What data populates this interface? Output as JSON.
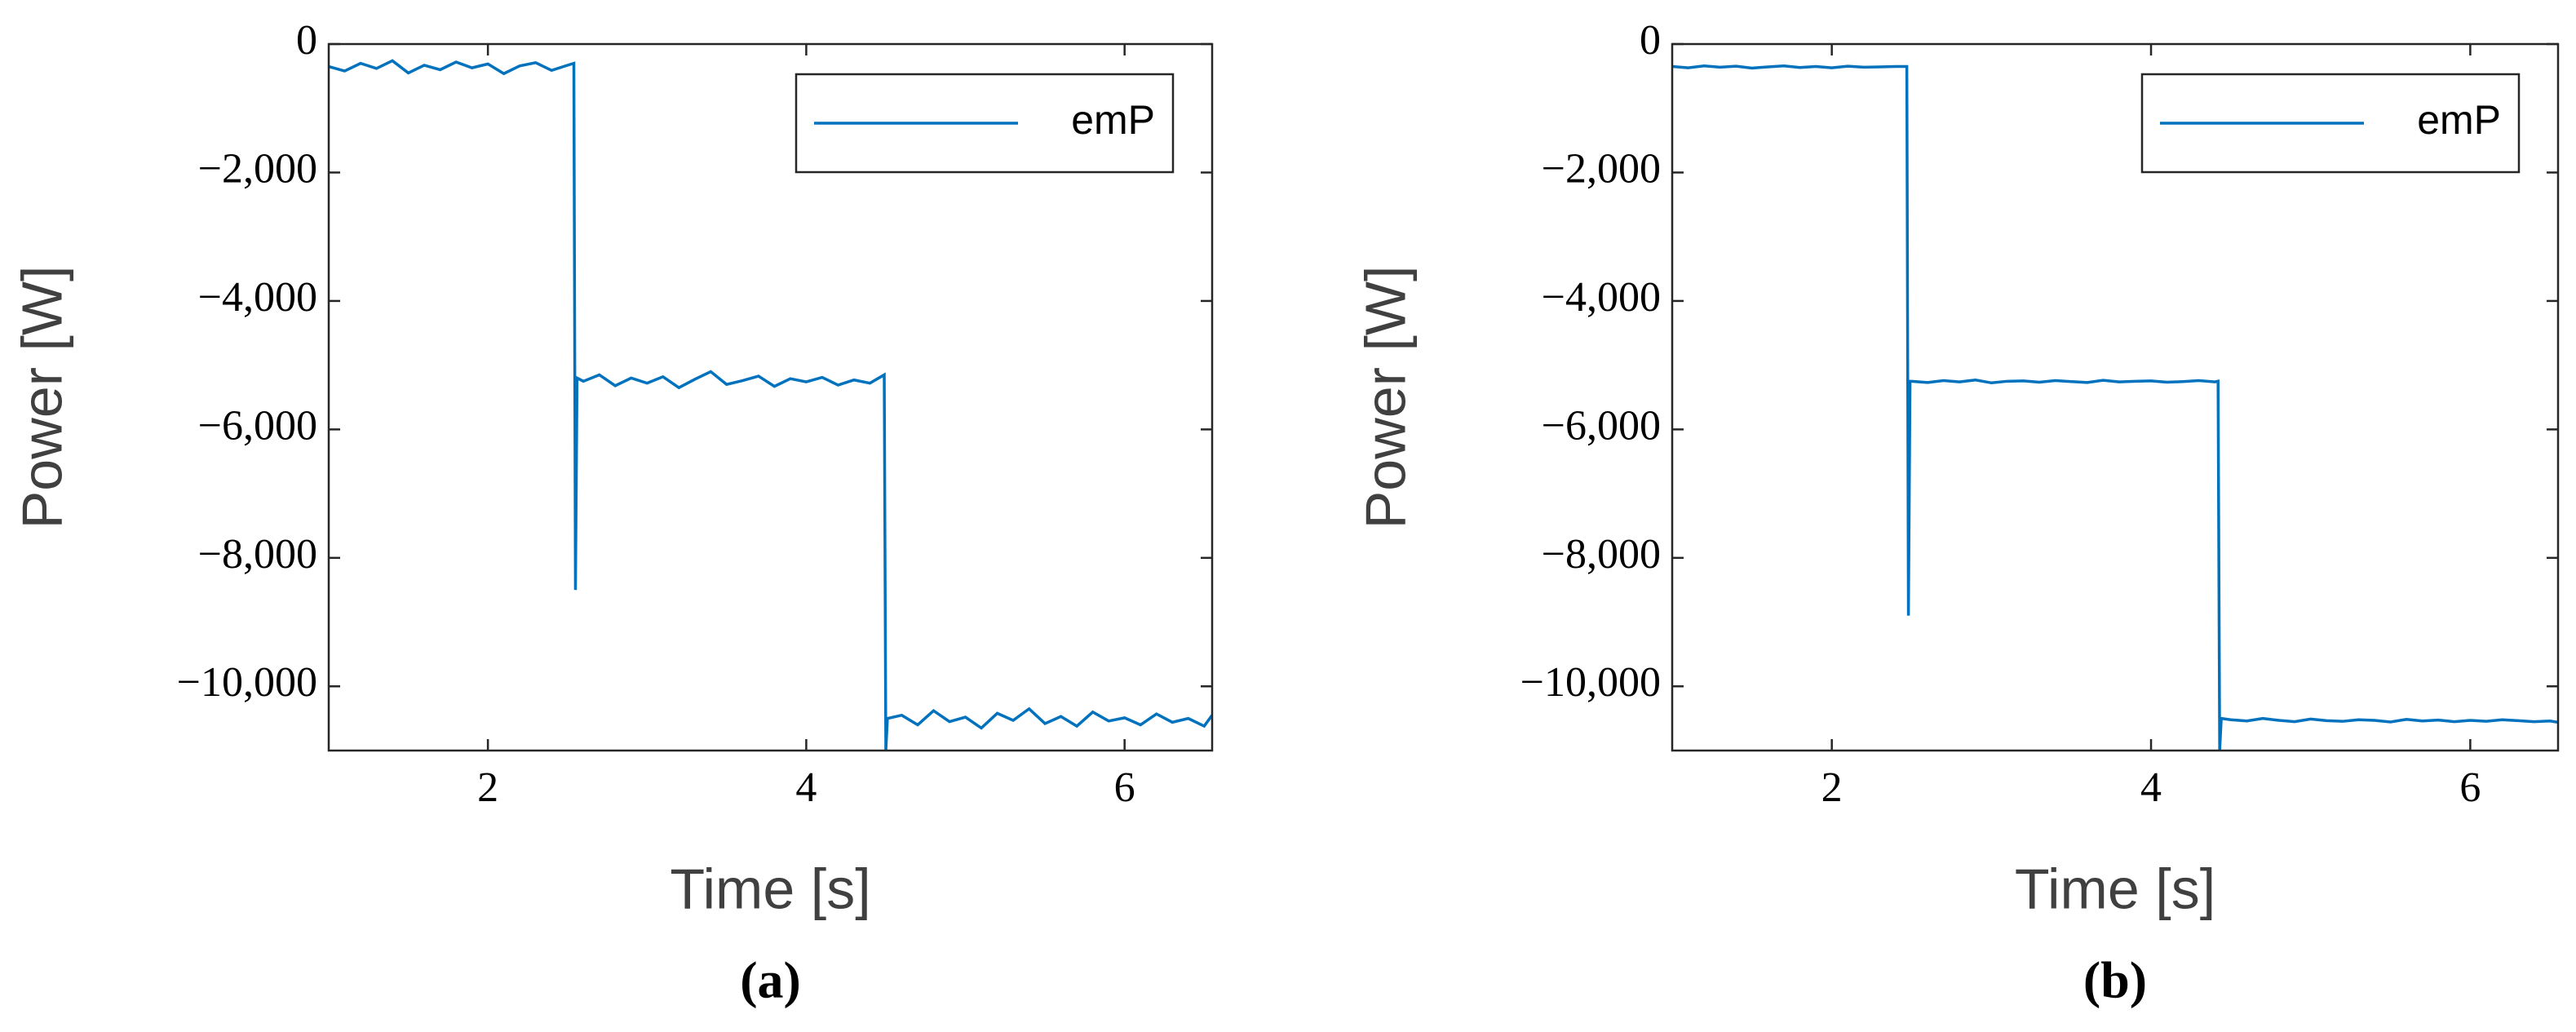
{
  "chart_data": [
    {
      "type": "line",
      "caption": "(a)",
      "x_label": "Time [s]",
      "y_label": "Power [W]",
      "xlim": [
        1,
        6.55
      ],
      "ylim": [
        -11000,
        0
      ],
      "xticks": [
        2,
        4,
        6
      ],
      "yticks": [
        {
          "value": -10000,
          "label": "−10,000"
        },
        {
          "value": -8000,
          "label": "−8,000"
        },
        {
          "value": -6000,
          "label": "−6,000"
        },
        {
          "value": -4000,
          "label": "−4,000"
        },
        {
          "value": -2000,
          "label": "−2,000"
        },
        0
      ],
      "legend": "top-right",
      "x": [
        1.0,
        1.1,
        1.2,
        1.3,
        1.4,
        1.5,
        1.6,
        1.7,
        1.8,
        1.9,
        2.0,
        2.1,
        2.2,
        2.3,
        2.4,
        2.5,
        2.54,
        2.55,
        2.56,
        2.6,
        2.7,
        2.8,
        2.9,
        3.0,
        3.1,
        3.2,
        3.3,
        3.4,
        3.5,
        3.6,
        3.7,
        3.8,
        3.9,
        4.0,
        4.1,
        4.2,
        4.3,
        4.4,
        4.49,
        4.5,
        4.51,
        4.6,
        4.7,
        4.8,
        4.9,
        5.0,
        5.1,
        5.2,
        5.3,
        5.4,
        5.5,
        5.6,
        5.7,
        5.8,
        5.9,
        6.0,
        6.1,
        6.2,
        6.3,
        6.4,
        6.5,
        6.55
      ],
      "series": [
        {
          "name": "emP",
          "color": "#0072bd",
          "values": [
            -350,
            -420,
            -300,
            -380,
            -260,
            -450,
            -330,
            -400,
            -280,
            -370,
            -310,
            -460,
            -340,
            -290,
            -410,
            -330,
            -300,
            -8500,
            -5200,
            -5250,
            -5150,
            -5320,
            -5200,
            -5280,
            -5180,
            -5350,
            -5220,
            -5100,
            -5300,
            -5240,
            -5170,
            -5330,
            -5210,
            -5260,
            -5190,
            -5310,
            -5230,
            -5280,
            -5150,
            -11000,
            -10500,
            -10450,
            -10600,
            -10380,
            -10550,
            -10480,
            -10650,
            -10420,
            -10530,
            -10350,
            -10580,
            -10470,
            -10620,
            -10400,
            -10540,
            -10490,
            -10600,
            -10430,
            -10560,
            -10500,
            -10620,
            -10450
          ]
        }
      ]
    },
    {
      "type": "line",
      "caption": "(b)",
      "x_label": "Time [s]",
      "y_label": "Power [W]",
      "xlim": [
        1,
        6.55
      ],
      "ylim": [
        -11000,
        0
      ],
      "xticks": [
        2,
        4,
        6
      ],
      "yticks": [
        {
          "value": -10000,
          "label": "−10,000"
        },
        {
          "value": -8000,
          "label": "−8,000"
        },
        {
          "value": -6000,
          "label": "−6,000"
        },
        {
          "value": -4000,
          "label": "−4,000"
        },
        {
          "value": -2000,
          "label": "−2,000"
        },
        0
      ],
      "legend": "top-right",
      "x": [
        1.0,
        1.1,
        1.2,
        1.3,
        1.4,
        1.5,
        1.6,
        1.7,
        1.8,
        1.9,
        2.0,
        2.1,
        2.2,
        2.3,
        2.4,
        2.47,
        2.48,
        2.49,
        2.5,
        2.6,
        2.7,
        2.8,
        2.9,
        3.0,
        3.1,
        3.2,
        3.3,
        3.4,
        3.5,
        3.6,
        3.7,
        3.8,
        3.9,
        4.0,
        4.1,
        4.2,
        4.3,
        4.4,
        4.42,
        4.43,
        4.44,
        4.5,
        4.6,
        4.7,
        4.8,
        4.9,
        5.0,
        5.1,
        5.2,
        5.3,
        5.4,
        5.5,
        5.6,
        5.7,
        5.8,
        5.9,
        6.0,
        6.1,
        6.2,
        6.3,
        6.4,
        6.5,
        6.55
      ],
      "series": [
        {
          "name": "emP",
          "color": "#0072bd",
          "values": [
            -350,
            -370,
            -340,
            -360,
            -345,
            -375,
            -355,
            -340,
            -365,
            -350,
            -370,
            -345,
            -360,
            -355,
            -350,
            -350,
            -8900,
            -5250,
            -5250,
            -5270,
            -5240,
            -5260,
            -5230,
            -5275,
            -5250,
            -5245,
            -5265,
            -5240,
            -5255,
            -5270,
            -5235,
            -5260,
            -5250,
            -5245,
            -5265,
            -5255,
            -5240,
            -5260,
            -5250,
            -11000,
            -10500,
            -10520,
            -10540,
            -10500,
            -10530,
            -10550,
            -10510,
            -10535,
            -10545,
            -10520,
            -10530,
            -10555,
            -10515,
            -10540,
            -10525,
            -10550,
            -10530,
            -10545,
            -10520,
            -10535,
            -10550,
            -10540,
            -10560
          ]
        }
      ]
    }
  ]
}
